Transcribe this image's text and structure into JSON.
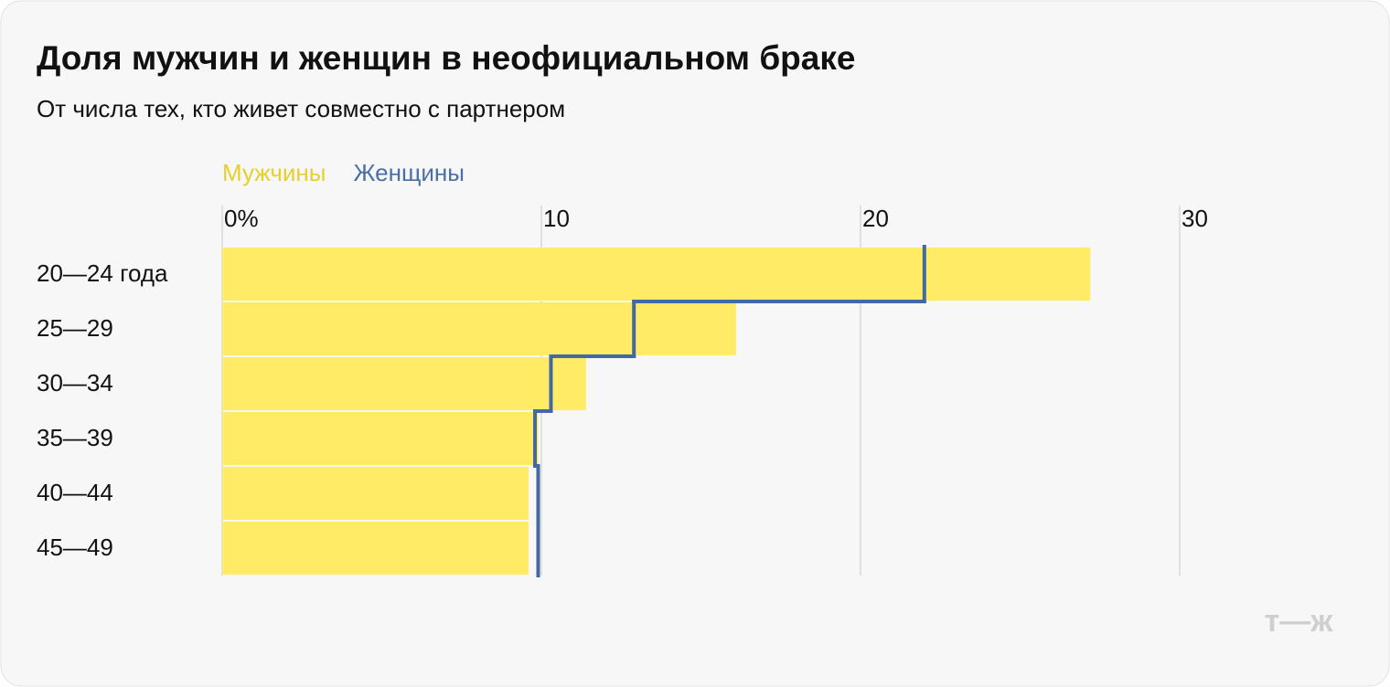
{
  "chart_data": {
    "type": "bar",
    "orientation": "horizontal",
    "title": "Доля мужчин и женщин в неофициальном браке",
    "subtitle": "От числа тех, кто живет совместно с партнером",
    "categories": [
      "20—24 года",
      "25—29",
      "30—34",
      "35—39",
      "40—44",
      "45—49"
    ],
    "series": [
      {
        "name": "Мужчины",
        "color": "#ffeb66",
        "legend_color": "#e6cf2e",
        "mark": "bar",
        "values": [
          27.2,
          16.1,
          11.4,
          9.9,
          9.6,
          9.6
        ]
      },
      {
        "name": "Женщины",
        "color": "#4169a3",
        "legend_color": "#4a6ea5",
        "mark": "step",
        "values": [
          22.0,
          12.9,
          10.3,
          9.8,
          9.9,
          9.9
        ]
      }
    ],
    "xlim": [
      0,
      30
    ],
    "xticks": [
      {
        "value": 0,
        "label": "0%"
      },
      10,
      20,
      30
    ],
    "grid": true,
    "logo": "т—ж"
  }
}
